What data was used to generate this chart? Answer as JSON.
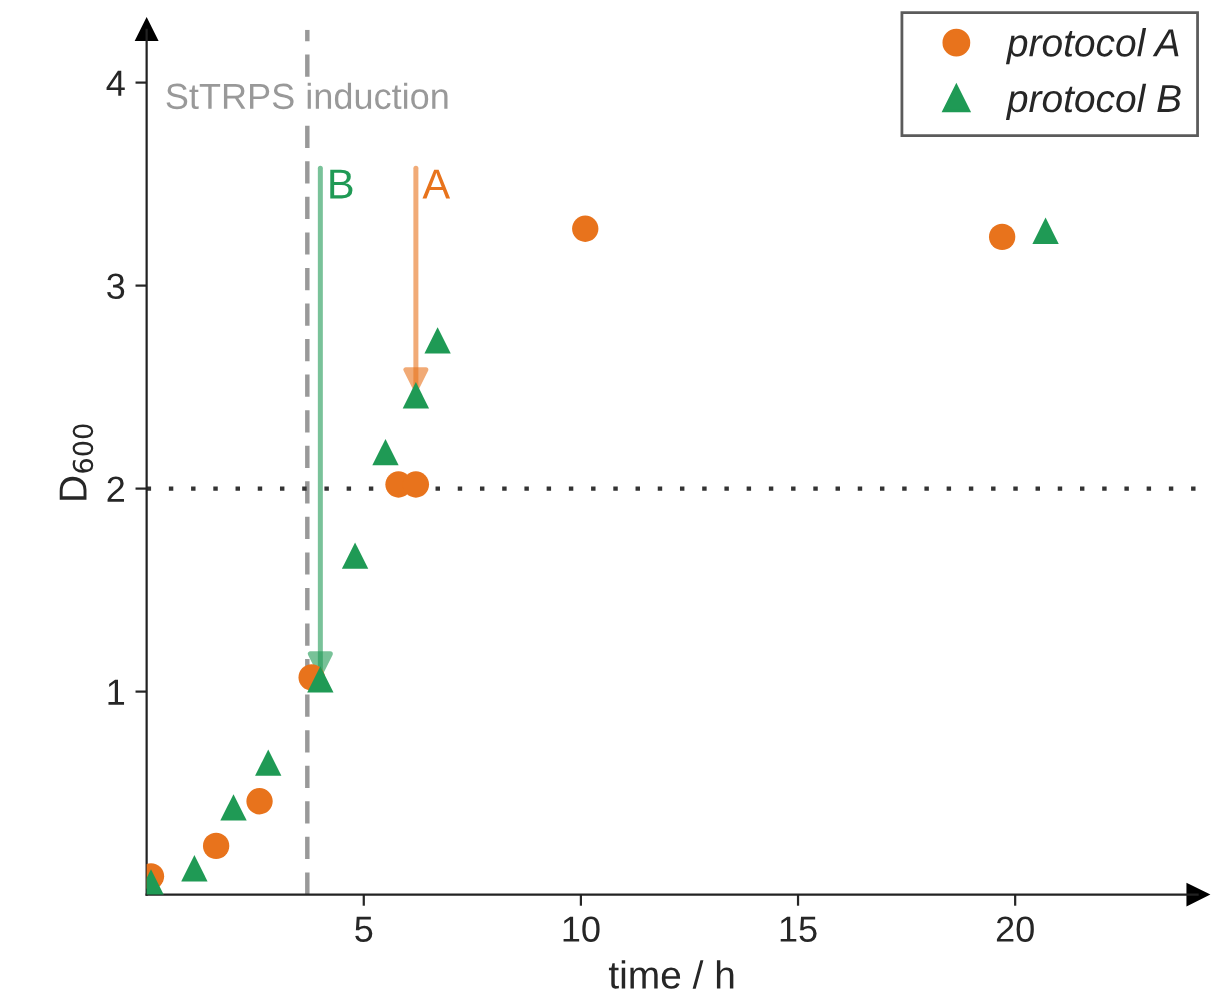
{
  "chart_data": {
    "type": "scatter",
    "xlabel": "time / h",
    "ylabel": "D$_{600}$",
    "series": [
      {
        "name": "protocol A",
        "color": "#e8731c",
        "marker": "circle",
        "x": [
          0.1,
          1.6,
          2.6,
          3.8,
          5.8,
          6.2,
          10.1,
          19.7
        ],
        "values": [
          0.09,
          0.24,
          0.46,
          1.07,
          2.02,
          2.02,
          3.28,
          3.24
        ]
      },
      {
        "name": "protocol B",
        "color": "#1f9a55",
        "marker": "triangle",
        "x": [
          0.1,
          1.1,
          2.0,
          2.8,
          4.0,
          4.8,
          5.5,
          6.2,
          6.7,
          20.7
        ],
        "values": [
          0.06,
          0.13,
          0.43,
          0.65,
          1.06,
          1.67,
          2.18,
          2.46,
          2.73,
          3.27
        ]
      }
    ],
    "xlim": [
      0,
      24.2
    ],
    "ylim": [
      0,
      4.26
    ],
    "xticks": [
      5,
      10,
      15,
      20
    ],
    "yticks": [
      1,
      2,
      3,
      4
    ],
    "ref_lines": [
      {
        "axis": "x",
        "value": 3.7,
        "label": "StTRPS induction",
        "color": "#999999",
        "line_style": "dashed"
      },
      {
        "axis": "y",
        "value": 2,
        "label": null,
        "color": "#333333",
        "line_style": "dotted"
      }
    ],
    "annotations": [
      {
        "text": "A",
        "x": 6.2,
        "y": 2.46
      },
      {
        "text": "B",
        "x": 4.0,
        "y": 1.06
      }
    ],
    "legend": "top right",
    "grid": false
  }
}
